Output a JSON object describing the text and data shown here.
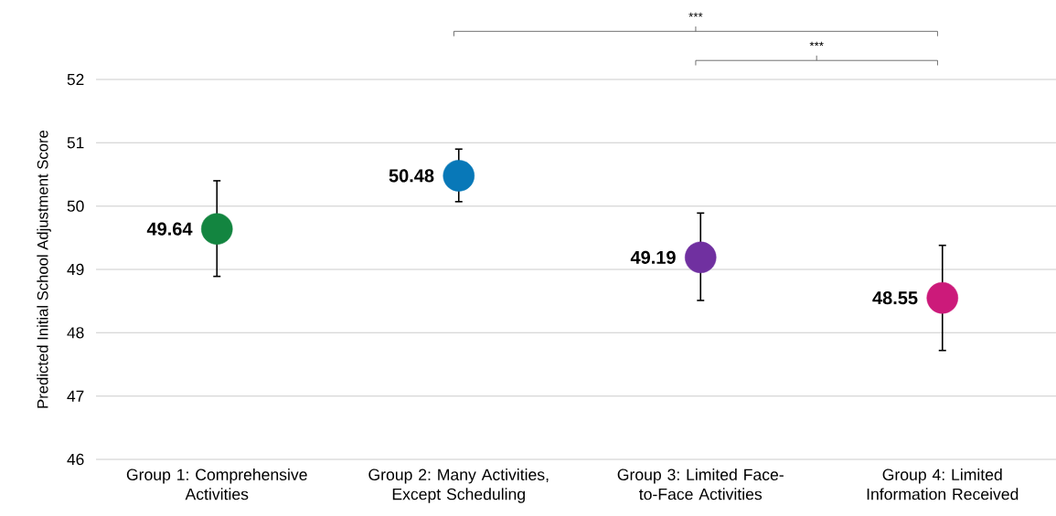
{
  "chart_data": {
    "type": "scatter",
    "ylabel": "Predicted Initial School Adjustment Score",
    "categories": [
      "Group 1: Comprehensive Activities",
      "Group 2: Many Activities, Except Scheduling",
      "Group 3: Limited Face-to-Face Activities",
      "Group 4: Limited Information Received"
    ],
    "values": [
      49.64,
      50.48,
      49.19,
      48.55
    ],
    "colors": [
      "#138540",
      "#0878b8",
      "#7030a0",
      "#cc1a7a"
    ],
    "errors": [
      [
        48.89,
        50.4
      ],
      [
        50.07,
        50.9
      ],
      [
        48.51,
        49.89
      ],
      [
        47.72,
        49.38
      ]
    ],
    "ylim": [
      46,
      52
    ],
    "yticks": [
      46,
      47,
      48,
      49,
      50,
      51,
      52
    ],
    "grid": "y",
    "marker": "circle",
    "data_labels": true,
    "annotations": [
      "***",
      "***"
    ]
  }
}
